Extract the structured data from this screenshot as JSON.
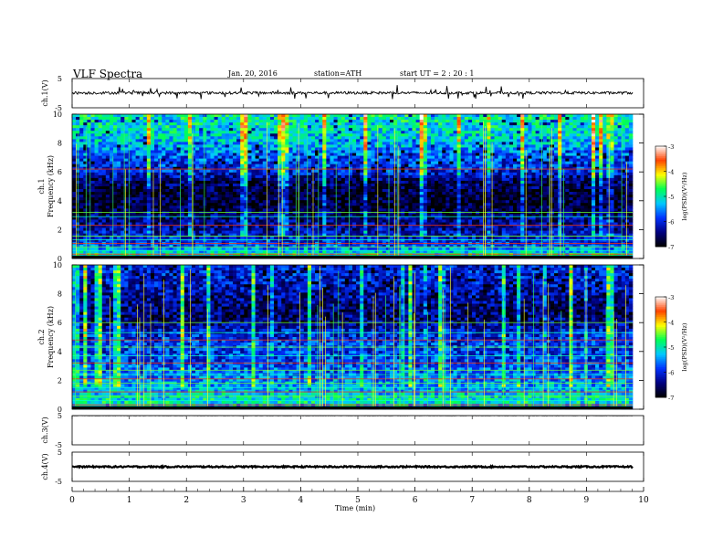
{
  "header": {
    "title": "VLF  Spectra",
    "date": "Jan. 20, 2016",
    "station": "station=ATH",
    "start": "start  UT =   2  : 20 : 1"
  },
  "chart_data": [
    {
      "type": "line",
      "panel": "ch1-waveform",
      "ylabel": "ch.1(V)",
      "yticks": [
        "5",
        "-5"
      ],
      "ylim": [
        -5,
        5
      ],
      "baseline": 0.1,
      "color": "#000000"
    },
    {
      "type": "heatmap",
      "panel": "ch1-spectrogram",
      "ylabel": "ch.1\nFrequency  (kHz)",
      "yticks": [
        "0",
        "2",
        "4",
        "6",
        "8",
        "10"
      ],
      "ylim": [
        0,
        10
      ],
      "xlim": [
        0,
        9.8
      ],
      "colorbar": {
        "label": "log(PSD)(V²/Hz)",
        "range": [
          -7,
          -3
        ],
        "ticks": [
          "-3",
          "-4",
          "-5",
          "-6",
          "-7"
        ]
      },
      "profile_kHz": [
        [
          0,
          -6.3
        ],
        [
          0.3,
          -5.0
        ],
        [
          1.0,
          -5.9
        ],
        [
          2.0,
          -6.3
        ],
        [
          3.0,
          -6.5
        ],
        [
          3.5,
          -6.8
        ],
        [
          4.5,
          -6.8
        ],
        [
          5.5,
          -6.5
        ],
        [
          6.0,
          -6.0
        ],
        [
          7.0,
          -5.8
        ],
        [
          8.0,
          -5.3
        ],
        [
          9.0,
          -5.1
        ],
        [
          10.0,
          -5.0
        ]
      ],
      "lines_kHz": [
        0.3,
        0.55,
        0.8,
        1.05,
        1.3,
        1.55,
        2.3,
        2.9,
        3.2,
        6.2
      ]
    },
    {
      "type": "heatmap",
      "panel": "ch2-spectrogram",
      "ylabel": "ch.2\nFrequency  (kHz)",
      "yticks": [
        "0",
        "2",
        "4",
        "6",
        "8",
        "10"
      ],
      "ylim": [
        0,
        10
      ],
      "xlim": [
        0,
        9.8
      ],
      "colorbar": {
        "label": "log(PSD)(V²/Hz)",
        "range": [
          -7,
          -3
        ],
        "ticks": [
          "-3",
          "-4",
          "-5",
          "-6",
          "-7"
        ]
      },
      "profile_kHz": [
        [
          0,
          -5.6
        ],
        [
          0.5,
          -5.0
        ],
        [
          1.5,
          -5.4
        ],
        [
          2.5,
          -5.7
        ],
        [
          3.5,
          -5.9
        ],
        [
          4.5,
          -5.9
        ],
        [
          5.5,
          -6.1
        ],
        [
          6.0,
          -6.5
        ],
        [
          7.0,
          -6.5
        ],
        [
          8.0,
          -6.3
        ],
        [
          9.0,
          -6.1
        ],
        [
          10.0,
          -6.0
        ]
      ],
      "lines_kHz": [
        0.3,
        0.6,
        0.9,
        1.2,
        1.5,
        1.8,
        2.1,
        2.4,
        2.7,
        3.2,
        3.7,
        4.3,
        4.8,
        5.3,
        6.0
      ]
    },
    {
      "type": "line",
      "panel": "ch3-waveform",
      "ylabel": "ch.3(V)",
      "yticks": [
        "5",
        "-5"
      ],
      "ylim": [
        -5,
        5
      ],
      "baseline": 4.9,
      "color": "#aaaaaa"
    },
    {
      "type": "line",
      "panel": "ch4-waveform",
      "ylabel": "ch.4(V)",
      "yticks": [
        "5",
        "-5"
      ],
      "ylim": [
        -5,
        5
      ],
      "baseline": 0.0,
      "color": "#000000"
    }
  ],
  "xaxis": {
    "label": "Time  (min)",
    "ticks": [
      "0",
      "1",
      "2",
      "3",
      "4",
      "5",
      "6",
      "7",
      "8",
      "9",
      "10"
    ],
    "xlim": [
      0,
      10
    ]
  },
  "colormap": [
    "#000000",
    "#000080",
    "#0033ff",
    "#00c8ff",
    "#00ff55",
    "#ffff00",
    "#ff4400",
    "#ffffff"
  ]
}
